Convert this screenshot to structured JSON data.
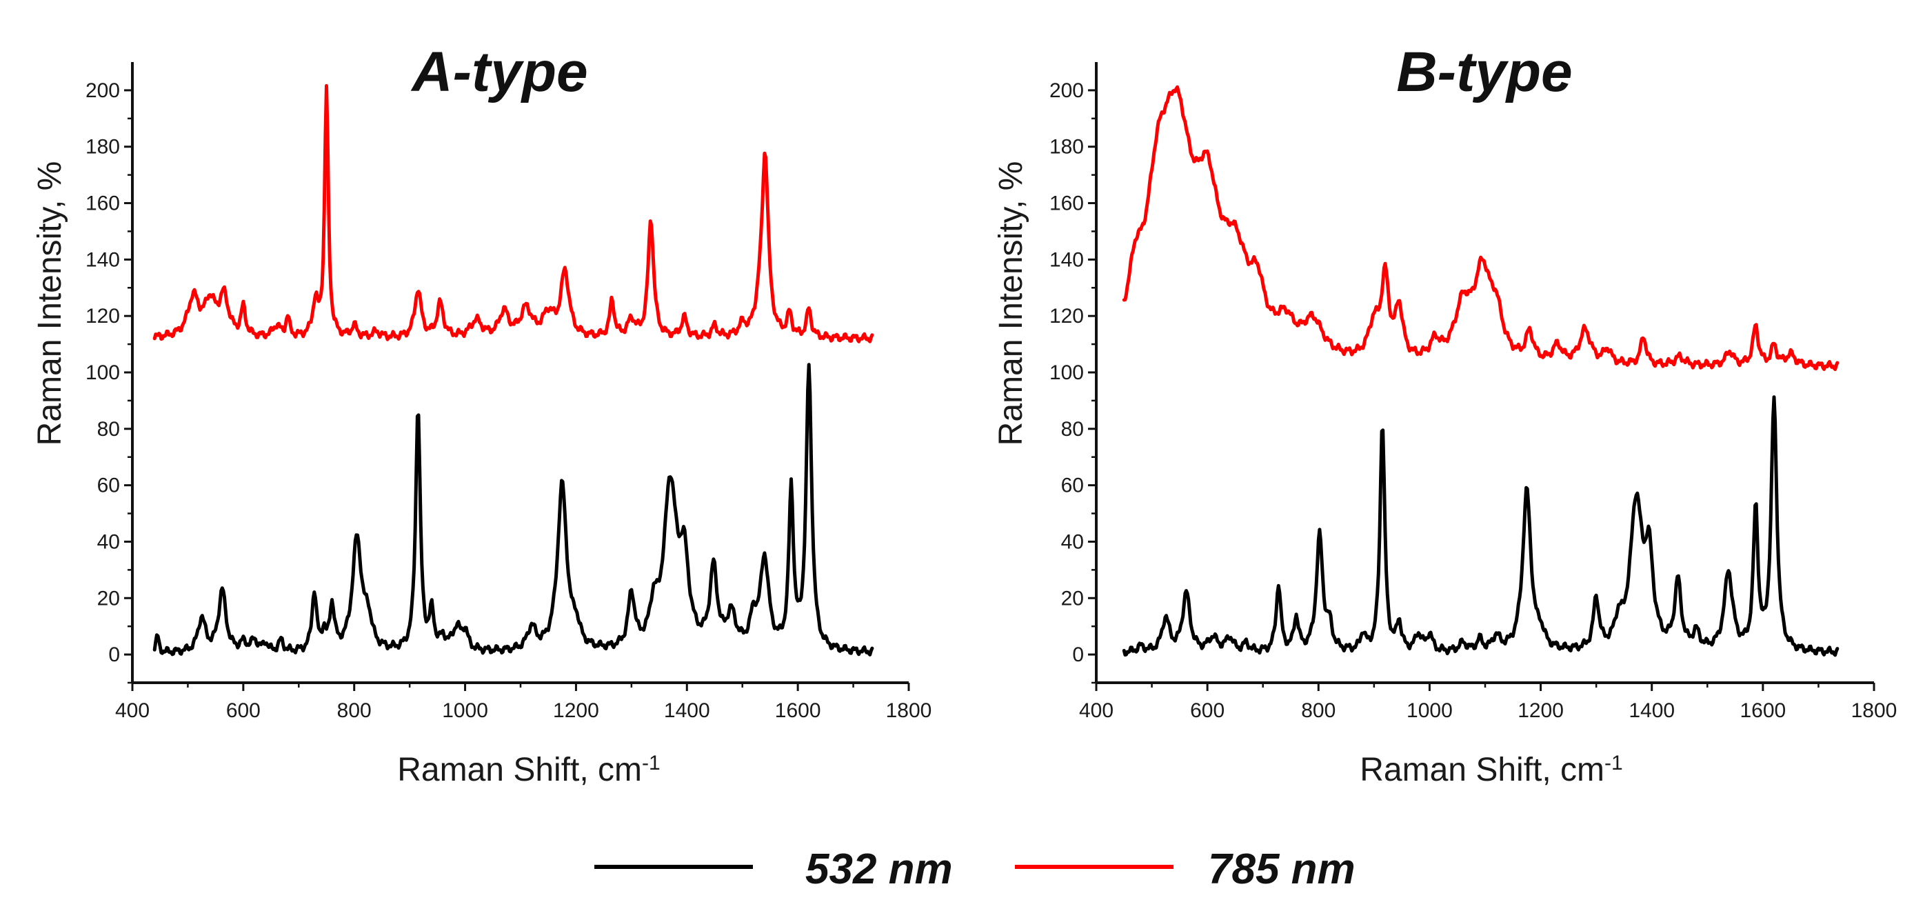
{
  "chart_data": [
    {
      "type": "line",
      "title": "A-type",
      "xlabel": "Raman Shift, cm",
      "xlabel_sup": "-1",
      "ylabel": "Raman Intensity, %",
      "xlim": [
        400,
        1800
      ],
      "ylim": [
        -10,
        210
      ],
      "x_ticks": [
        400,
        600,
        800,
        1000,
        1200,
        1400,
        1600,
        1800
      ],
      "y_ticks": [
        0,
        20,
        40,
        60,
        80,
        100,
        120,
        140,
        160,
        180,
        200
      ],
      "series": [
        {
          "name": "532 nm",
          "color": "#000000",
          "baseline": 0.5,
          "range": [
            440,
            1735
          ],
          "peaks": [
            [
              445,
              6,
              3
            ],
            [
              525,
              12,
              8
            ],
            [
              562,
              22,
              8
            ],
            [
              600,
              3,
              7
            ],
            [
              620,
              4,
              7
            ],
            [
              640,
              3,
              5
            ],
            [
              668,
              4,
              5
            ],
            [
              728,
              21,
              5
            ],
            [
              745,
              6,
              4
            ],
            [
              760,
              16,
              5
            ],
            [
              805,
              40,
              10
            ],
            [
              825,
              10,
              8
            ],
            [
              915,
              87,
              5
            ],
            [
              940,
              13,
              5
            ],
            [
              960,
              4,
              6
            ],
            [
              985,
              8,
              10
            ],
            [
              1000,
              6,
              6
            ],
            [
              1120,
              8,
              9
            ],
            [
              1175,
              59,
              10
            ],
            [
              1200,
              7,
              8
            ],
            [
              1300,
              19,
              7
            ],
            [
              1340,
              12,
              8
            ],
            [
              1370,
              58,
              14
            ],
            [
              1395,
              28,
              10
            ],
            [
              1448,
              28,
              8
            ],
            [
              1480,
              12,
              10
            ],
            [
              1520,
              10,
              8
            ],
            [
              1540,
              32,
              9
            ],
            [
              1588,
              56,
              5
            ],
            [
              1620,
              100,
              6
            ]
          ]
        },
        {
          "name": "785 nm",
          "color": "#ff0000",
          "baseline": 112,
          "range": [
            440,
            1735
          ],
          "peaks": [
            [
              510,
              14,
              12
            ],
            [
              540,
              12,
              12
            ],
            [
              565,
              14,
              10
            ],
            [
              600,
              10,
              5
            ],
            [
              660,
              4,
              8
            ],
            [
              680,
              7,
              4
            ],
            [
              730,
              12,
              6
            ],
            [
              750,
              88,
              4
            ],
            [
              800,
              4,
              6
            ],
            [
              840,
              2,
              8
            ],
            [
              915,
              17,
              7
            ],
            [
              955,
              12,
              7
            ],
            [
              1020,
              6,
              12
            ],
            [
              1070,
              9,
              10
            ],
            [
              1110,
              10,
              12
            ],
            [
              1150,
              8,
              12
            ],
            [
              1180,
              23,
              9
            ],
            [
              1265,
              13,
              5
            ],
            [
              1300,
              6,
              8
            ],
            [
              1335,
              42,
              6
            ],
            [
              1395,
              7,
              6
            ],
            [
              1450,
              4,
              6
            ],
            [
              1500,
              4,
              8
            ],
            [
              1530,
              7,
              8
            ],
            [
              1541,
              64,
              7
            ],
            [
              1585,
              8,
              5
            ],
            [
              1620,
              10,
              5
            ]
          ]
        }
      ]
    },
    {
      "type": "line",
      "title": "B-type",
      "xlabel": "Raman Shift, cm",
      "xlabel_sup": "-1",
      "ylabel": "Raman Intensity, %",
      "xlim": [
        400,
        1800
      ],
      "ylim": [
        -10,
        210
      ],
      "x_ticks": [
        400,
        600,
        800,
        1000,
        1200,
        1400,
        1600,
        1800
      ],
      "y_ticks": [
        0,
        20,
        40,
        60,
        80,
        100,
        120,
        140,
        160,
        180,
        200
      ],
      "series": [
        {
          "name": "532 nm",
          "color": "#000000",
          "baseline": 0.5,
          "range": [
            450,
            1735
          ],
          "peaks": [
            [
              480,
              2,
              8
            ],
            [
              525,
              12,
              8
            ],
            [
              562,
              21,
              8
            ],
            [
              610,
              5,
              10
            ],
            [
              640,
              5,
              8
            ],
            [
              670,
              3,
              6
            ],
            [
              728,
              24,
              5
            ],
            [
              760,
              12,
              5
            ],
            [
              802,
              41,
              7
            ],
            [
              820,
              8,
              6
            ],
            [
              880,
              6,
              5
            ],
            [
              915,
              82,
              5
            ],
            [
              945,
              10,
              5
            ],
            [
              980,
              6,
              7
            ],
            [
              1000,
              6,
              6
            ],
            [
              1060,
              3,
              8
            ],
            [
              1090,
              4,
              6
            ],
            [
              1120,
              5,
              8
            ],
            [
              1175,
              57,
              9
            ],
            [
              1200,
              5,
              8
            ],
            [
              1300,
              18,
              6
            ],
            [
              1340,
              8,
              8
            ],
            [
              1372,
              52,
              13
            ],
            [
              1395,
              30,
              9
            ],
            [
              1447,
              24,
              7
            ],
            [
              1480,
              6,
              7
            ],
            [
              1538,
              28,
              9
            ],
            [
              1587,
              50,
              5
            ],
            [
              1620,
              89,
              6
            ]
          ]
        },
        {
          "name": "785 nm",
          "color": "#ff0000",
          "baseline": 102,
          "range": [
            450,
            1735
          ],
          "peaks": [
            [
              470,
              18,
              15
            ],
            [
              510,
              40,
              25
            ],
            [
              545,
              74,
              35
            ],
            [
              600,
              42,
              25
            ],
            [
              650,
              30,
              30
            ],
            [
              690,
              16,
              15
            ],
            [
              740,
              10,
              20
            ],
            [
              790,
              12,
              22
            ],
            [
              900,
              12,
              12
            ],
            [
              920,
              28,
              8
            ],
            [
              945,
              18,
              8
            ],
            [
              1010,
              6,
              10
            ],
            [
              1060,
              18,
              18
            ],
            [
              1095,
              30,
              18
            ],
            [
              1120,
              14,
              14
            ],
            [
              1180,
              10,
              8
            ],
            [
              1230,
              6,
              10
            ],
            [
              1280,
              12,
              12
            ],
            [
              1320,
              5,
              8
            ],
            [
              1385,
              10,
              6
            ],
            [
              1450,
              3,
              10
            ],
            [
              1540,
              5,
              8
            ],
            [
              1587,
              14,
              6
            ],
            [
              1620,
              7,
              6
            ],
            [
              1650,
              4,
              10
            ]
          ]
        }
      ]
    }
  ],
  "legend": [
    {
      "label": "532 nm",
      "color": "#000000"
    },
    {
      "label": "785 nm",
      "color": "#ff0000"
    }
  ]
}
